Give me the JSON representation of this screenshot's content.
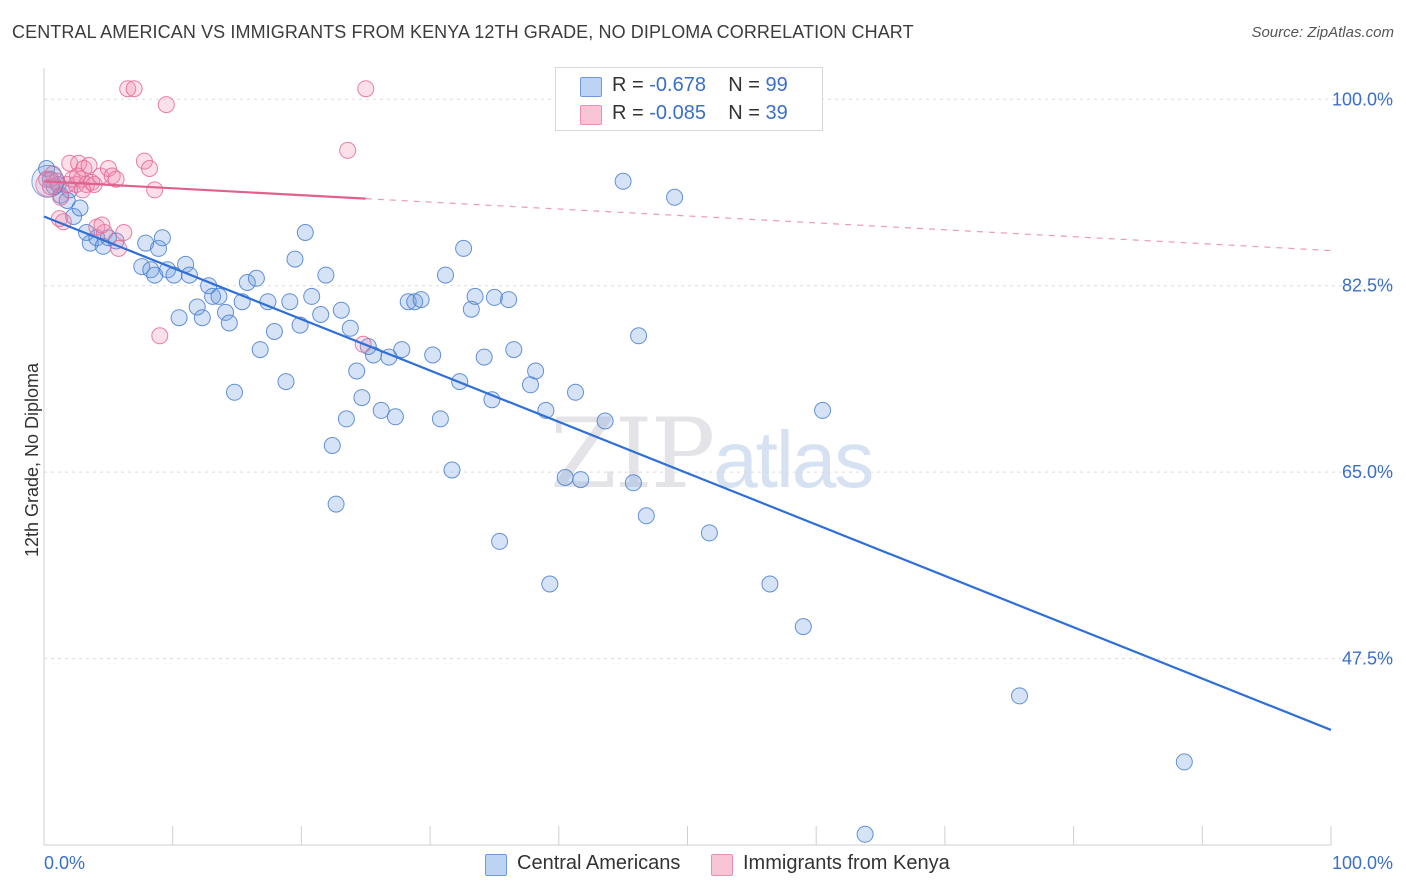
{
  "header": {
    "title": "CENTRAL AMERICAN VS IMMIGRANTS FROM KENYA 12TH GRADE, NO DIPLOMA CORRELATION CHART",
    "source": "Source: ZipAtlas.com"
  },
  "watermark": {
    "zip": "ZIP",
    "atlas": "atlas"
  },
  "legend": {
    "rows": [
      {
        "r_label": "R = ",
        "r_value": "-0.678",
        "n_label": "N = ",
        "n_value": "99",
        "color": "#6b9be0"
      },
      {
        "r_label": "R = ",
        "r_value": "-0.085",
        "n_label": "N = ",
        "n_value": "39",
        "color": "#f08cb0"
      }
    ]
  },
  "bottom_legend": [
    {
      "label": "Central Americans",
      "color": "#6b9be0"
    },
    {
      "label": "Immigrants from Kenya",
      "color": "#f08cb0"
    }
  ],
  "chart_data": {
    "type": "scatter",
    "title": "CENTRAL AMERICAN VS IMMIGRANTS FROM KENYA 12TH GRADE, NO DIPLOMA CORRELATION CHART",
    "xlabel": "",
    "ylabel": "12th Grade, No Diploma",
    "xlim": [
      0,
      100
    ],
    "ylim": [
      30,
      102
    ],
    "x_tick_labels": [
      "0.0%",
      "100.0%"
    ],
    "y_ticks": [
      47.5,
      65.0,
      82.5,
      100.0
    ],
    "y_tick_labels": [
      "47.5%",
      "65.0%",
      "82.5%",
      "100.0%"
    ],
    "grid": true,
    "series": [
      {
        "name": "Central Americans",
        "color": "#6b9be0",
        "stroke": "#4a7fd0",
        "trend": {
          "x0": 0,
          "y0": 89.0,
          "x1": 100,
          "y1": 40.8,
          "dashed_from": null
        },
        "points": [
          [
            0.2,
            93.5
          ],
          [
            0.5,
            92.5
          ],
          [
            0.8,
            91.8
          ],
          [
            1.1,
            92.0
          ],
          [
            1.3,
            91.0
          ],
          [
            1.8,
            90.5
          ],
          [
            2.0,
            91.5
          ],
          [
            2.3,
            89.0
          ],
          [
            2.8,
            89.8
          ],
          [
            3.3,
            87.5
          ],
          [
            3.6,
            86.5
          ],
          [
            4.1,
            87.0
          ],
          [
            4.6,
            86.2
          ],
          [
            5.0,
            87.0
          ],
          [
            5.6,
            86.7
          ],
          [
            7.6,
            84.3
          ],
          [
            7.9,
            86.5
          ],
          [
            8.3,
            84.0
          ],
          [
            8.6,
            83.5
          ],
          [
            8.9,
            86.0
          ],
          [
            9.2,
            87.0
          ],
          [
            9.6,
            84.0
          ],
          [
            10.1,
            83.5
          ],
          [
            10.5,
            79.5
          ],
          [
            11.0,
            84.5
          ],
          [
            11.3,
            83.5
          ],
          [
            11.9,
            80.5
          ],
          [
            12.3,
            79.5
          ],
          [
            12.8,
            82.5
          ],
          [
            13.1,
            81.5
          ],
          [
            13.6,
            81.5
          ],
          [
            14.1,
            80.0
          ],
          [
            14.4,
            79.0
          ],
          [
            14.8,
            72.5
          ],
          [
            15.4,
            81.0
          ],
          [
            15.8,
            82.8
          ],
          [
            16.5,
            83.2
          ],
          [
            16.8,
            76.5
          ],
          [
            17.4,
            81.0
          ],
          [
            17.9,
            78.2
          ],
          [
            18.8,
            73.5
          ],
          [
            19.1,
            81.0
          ],
          [
            19.5,
            85.0
          ],
          [
            19.9,
            78.8
          ],
          [
            20.3,
            87.5
          ],
          [
            20.8,
            81.5
          ],
          [
            21.5,
            79.8
          ],
          [
            21.9,
            83.5
          ],
          [
            22.4,
            67.5
          ],
          [
            22.7,
            62.0
          ],
          [
            23.1,
            80.2
          ],
          [
            23.5,
            70.0
          ],
          [
            23.8,
            78.5
          ],
          [
            24.3,
            74.5
          ],
          [
            24.7,
            72.0
          ],
          [
            25.2,
            76.8
          ],
          [
            25.6,
            76.0
          ],
          [
            26.2,
            70.8
          ],
          [
            26.8,
            75.8
          ],
          [
            27.3,
            70.2
          ],
          [
            27.8,
            76.5
          ],
          [
            28.3,
            81.0
          ],
          [
            28.8,
            81.0
          ],
          [
            29.3,
            81.2
          ],
          [
            30.2,
            76.0
          ],
          [
            30.8,
            70.0
          ],
          [
            31.2,
            83.5
          ],
          [
            31.7,
            65.2
          ],
          [
            32.3,
            73.5
          ],
          [
            32.6,
            86.0
          ],
          [
            33.2,
            80.3
          ],
          [
            33.5,
            81.5
          ],
          [
            34.2,
            75.8
          ],
          [
            34.8,
            71.8
          ],
          [
            35.0,
            81.4
          ],
          [
            35.4,
            58.5
          ],
          [
            36.1,
            81.2
          ],
          [
            36.5,
            76.5
          ],
          [
            37.8,
            73.2
          ],
          [
            38.2,
            74.5
          ],
          [
            39.0,
            70.8
          ],
          [
            39.3,
            54.5
          ],
          [
            40.5,
            64.5
          ],
          [
            41.3,
            72.5
          ],
          [
            41.7,
            64.3
          ],
          [
            43.6,
            69.8
          ],
          [
            45.0,
            92.3
          ],
          [
            46.2,
            77.8
          ],
          [
            46.8,
            60.9
          ],
          [
            48.1,
            100.2
          ],
          [
            49.0,
            90.8
          ],
          [
            51.7,
            59.3
          ],
          [
            56.4,
            54.5
          ],
          [
            59.0,
            50.5
          ],
          [
            60.5,
            70.8
          ],
          [
            63.8,
            31.0
          ],
          [
            75.8,
            44.0
          ],
          [
            88.6,
            37.8
          ],
          [
            45.8,
            64.0
          ]
        ]
      },
      {
        "name": "Immigrants from Kenya",
        "color": "#f08cb0",
        "stroke": "#e46a98",
        "trend": {
          "x0": 0,
          "y0": 92.3,
          "x1": 100,
          "y1": 85.8,
          "dashed_from": 25
        },
        "points": [
          [
            0.2,
            92.5
          ],
          [
            0.5,
            91.8
          ],
          [
            0.7,
            93.0
          ],
          [
            1.0,
            92.3
          ],
          [
            1.3,
            90.8
          ],
          [
            1.5,
            88.5
          ],
          [
            1.8,
            92.0
          ],
          [
            2.0,
            94.0
          ],
          [
            2.2,
            92.5
          ],
          [
            2.5,
            92.0
          ],
          [
            2.7,
            94.0
          ],
          [
            2.9,
            92.5
          ],
          [
            3.1,
            93.5
          ],
          [
            3.3,
            92.0
          ],
          [
            3.5,
            93.8
          ],
          [
            3.7,
            92.2
          ],
          [
            3.9,
            92.0
          ],
          [
            4.1,
            88.0
          ],
          [
            4.4,
            92.8
          ],
          [
            4.7,
            87.5
          ],
          [
            5.0,
            93.5
          ],
          [
            5.3,
            92.8
          ],
          [
            5.6,
            92.5
          ],
          [
            6.5,
            101.0
          ],
          [
            7.0,
            101.0
          ],
          [
            7.8,
            94.2
          ],
          [
            8.2,
            93.5
          ],
          [
            8.6,
            91.5
          ],
          [
            9.0,
            77.8
          ],
          [
            9.5,
            99.5
          ],
          [
            23.6,
            95.2
          ],
          [
            24.8,
            77.0
          ],
          [
            25.0,
            101.0
          ],
          [
            1.2,
            88.8
          ],
          [
            2.6,
            92.8
          ],
          [
            3.0,
            91.5
          ],
          [
            4.5,
            88.2
          ],
          [
            5.8,
            86.0
          ],
          [
            6.2,
            87.5
          ]
        ]
      }
    ]
  }
}
